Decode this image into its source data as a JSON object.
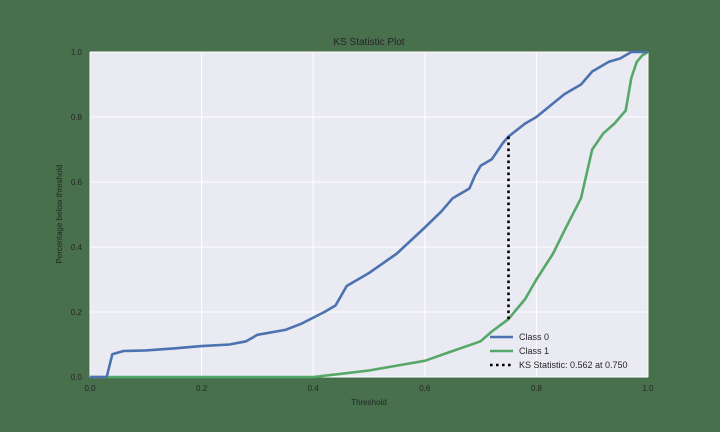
{
  "chart_data": {
    "type": "line",
    "title": "KS Statistic Plot",
    "xlabel": "Threshold",
    "ylabel": "Percentage below threshold",
    "xlim": [
      0.0,
      1.0
    ],
    "ylim": [
      0.0,
      1.0
    ],
    "xticks": [
      "0.0",
      "0.2",
      "0.4",
      "0.6",
      "0.8",
      "1.0"
    ],
    "yticks": [
      "0.0",
      "0.2",
      "0.4",
      "0.6",
      "0.8",
      "1.0"
    ],
    "grid": true,
    "legend_position": "lower right",
    "series": [
      {
        "name": "Class 0",
        "color": "#4c72b0",
        "x": [
          0.0,
          0.03,
          0.04,
          0.06,
          0.1,
          0.15,
          0.2,
          0.25,
          0.28,
          0.3,
          0.35,
          0.38,
          0.42,
          0.44,
          0.45,
          0.46,
          0.5,
          0.55,
          0.6,
          0.63,
          0.65,
          0.68,
          0.69,
          0.7,
          0.72,
          0.74,
          0.75,
          0.78,
          0.8,
          0.85,
          0.88,
          0.9,
          0.93,
          0.95,
          0.97,
          1.0
        ],
        "y": [
          0.0,
          0.0,
          0.07,
          0.08,
          0.082,
          0.088,
          0.095,
          0.1,
          0.11,
          0.13,
          0.145,
          0.165,
          0.2,
          0.22,
          0.25,
          0.28,
          0.32,
          0.38,
          0.46,
          0.51,
          0.55,
          0.58,
          0.62,
          0.65,
          0.67,
          0.72,
          0.74,
          0.78,
          0.8,
          0.87,
          0.9,
          0.94,
          0.97,
          0.98,
          1.0,
          1.0
        ]
      },
      {
        "name": "Class 1",
        "color": "#55a868",
        "x": [
          0.0,
          0.4,
          0.45,
          0.5,
          0.55,
          0.6,
          0.65,
          0.7,
          0.72,
          0.75,
          0.78,
          0.8,
          0.83,
          0.85,
          0.88,
          0.9,
          0.92,
          0.94,
          0.96,
          0.97,
          0.98,
          0.99,
          1.0
        ],
        "y": [
          0.0,
          0.0,
          0.01,
          0.02,
          0.035,
          0.05,
          0.08,
          0.11,
          0.14,
          0.178,
          0.24,
          0.3,
          0.38,
          0.45,
          0.55,
          0.7,
          0.75,
          0.78,
          0.82,
          0.92,
          0.97,
          0.99,
          1.0
        ]
      }
    ],
    "annotation": {
      "name": "KS Statistic: 0.562 at 0.750",
      "x": 0.75,
      "y_from": 0.178,
      "y_to": 0.74,
      "style": "dotted",
      "color": "#000000"
    }
  },
  "legend": [
    {
      "label": "Class 0",
      "color": "#4c72b0",
      "style": "solid"
    },
    {
      "label": "Class 1",
      "color": "#55a868",
      "style": "solid"
    },
    {
      "label": "KS Statistic: 0.562 at 0.750",
      "color": "#000000",
      "style": "dotted"
    }
  ],
  "colors": {
    "figure_bg": "#48704c",
    "axes_bg": "#eaeaf2",
    "grid": "#ffffff"
  }
}
